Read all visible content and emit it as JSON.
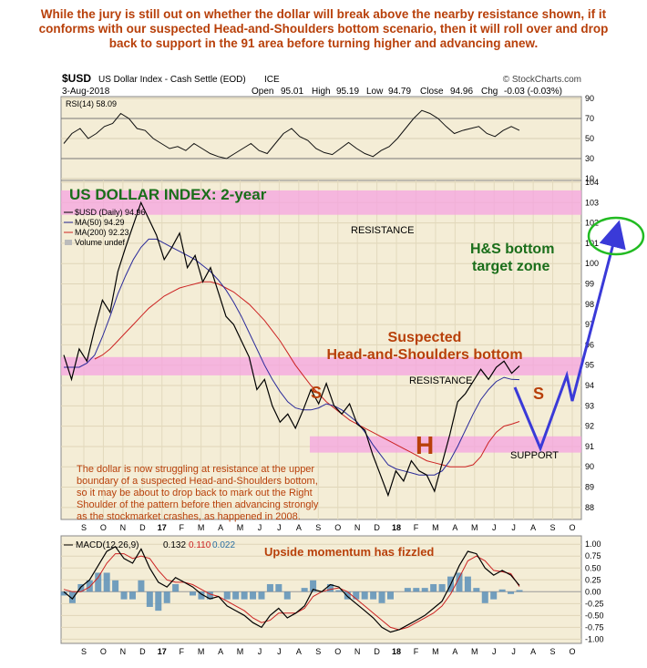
{
  "headline": "While the jury is still out on whether the dollar will break above the nearby resistance shown, if it conforms with our suspected Head-and-Shoulders bottom scenario, then it will roll over and drop back to support in the 91 area before turning higher and advancing anew.",
  "header": {
    "symbol": "$USD",
    "name": "US Dollar Index - Cash Settle (EOD)",
    "exchange": "ICE",
    "brand": "© StockCharts.com",
    "date": "3-Aug-2018",
    "open_label": "Open",
    "open": "95.01",
    "high_label": "High",
    "high": "95.19",
    "low_label": "Low",
    "low": "94.79",
    "close_label": "Close",
    "close": "94.96",
    "chg_label": "Chg",
    "chg": "-0.03 (-0.03%)"
  },
  "colors": {
    "panel_bg": "#f4edd6",
    "price": "#000000",
    "ma50": "#2a2a9a",
    "ma200": "#cc2222",
    "band": "#f5a3e0",
    "annotation_orange": "#b8400a",
    "annotation_green": "#1a6e1a",
    "annotation_blue": "#3a3ad8"
  },
  "annotations": {
    "title": "US DOLLAR INDEX: 2-year",
    "resistance_upper": "RESISTANCE",
    "resistance_lower": "RESISTANCE",
    "support": "SUPPORT",
    "target_line1": "H&S bottom",
    "target_line2": "target  zone",
    "pattern_line1": "Suspected",
    "pattern_line2": "Head-and-Shoulders bottom",
    "left_shoulder": "S",
    "head": "H",
    "right_shoulder": "S",
    "note": [
      "The dollar is now struggling at resistance at the upper",
      "boundary of a suspected Head-and-Shoulders bottom,",
      "so it may be about to drop back to mark out the Right",
      "Shoulder of the pattern before then advancing strongly",
      "as the stockmarket crashes, as happened in 2008."
    ],
    "macd_note": "Upside momentum has fizzled"
  },
  "chart_data": [
    {
      "type": "line",
      "panel": "RSI",
      "legend": "RSI(14) 58.09",
      "ylim": [
        10,
        90
      ],
      "ticks": [
        90,
        70,
        50,
        30,
        10
      ],
      "guide_lines": [
        70,
        30
      ],
      "values": [
        45,
        55,
        60,
        50,
        55,
        62,
        65,
        75,
        70,
        60,
        58,
        50,
        45,
        40,
        42,
        38,
        45,
        40,
        35,
        32,
        30,
        35,
        40,
        45,
        38,
        35,
        45,
        55,
        60,
        52,
        48,
        40,
        36,
        34,
        40,
        46,
        40,
        35,
        32,
        38,
        42,
        50,
        60,
        70,
        78,
        75,
        70,
        62,
        55,
        58,
        60,
        62,
        55,
        52,
        58,
        62,
        58.09
      ]
    },
    {
      "type": "line",
      "panel": "price",
      "legend": [
        "$USD (Daily) 94.96",
        "MA(50) 94.29",
        "MA(200) 92.23",
        "Volume undef"
      ],
      "ylim": [
        87.5,
        104
      ],
      "ticks": [
        104,
        103,
        102,
        101,
        100,
        99,
        98,
        97,
        96,
        95,
        94,
        93,
        92,
        91,
        90,
        89,
        88
      ],
      "x_labels": [
        "S",
        "O",
        "N",
        "D",
        "17",
        "F",
        "M",
        "A",
        "M",
        "J",
        "J",
        "A",
        "S",
        "O",
        "N",
        "D",
        "18",
        "F",
        "M",
        "A",
        "M",
        "J",
        "J",
        "A",
        "S",
        "O"
      ],
      "bands": {
        "upper_resistance": [
          102.4,
          103.6
        ],
        "lower_resistance": [
          94.5,
          95.4
        ],
        "support": [
          90.7,
          91.5
        ]
      },
      "series": [
        {
          "name": "$USD",
          "values": [
            95.5,
            94.3,
            95.8,
            95.2,
            96.8,
            98.2,
            97.6,
            99.6,
            100.8,
            101.9,
            103.0,
            102.2,
            101.4,
            100.2,
            100.8,
            101.5,
            99.8,
            100.4,
            99.1,
            99.8,
            98.6,
            97.4,
            97.0,
            96.2,
            95.4,
            93.8,
            94.3,
            93.0,
            92.2,
            92.6,
            91.9,
            92.8,
            93.8,
            93.1,
            94.1,
            93.0,
            92.6,
            93.1,
            92.1,
            91.8,
            90.6,
            89.6,
            88.6,
            89.8,
            89.3,
            90.3,
            89.8,
            89.6,
            88.8,
            90.2,
            91.6,
            93.2,
            93.6,
            94.2,
            94.8,
            94.3,
            94.9,
            95.2,
            94.6,
            94.96
          ]
        },
        {
          "name": "MA(50)",
          "values": [
            94.9,
            94.9,
            94.9,
            95.1,
            95.5,
            96.4,
            97.4,
            98.5,
            99.4,
            100.2,
            100.8,
            101.2,
            101.2,
            101.0,
            100.8,
            100.6,
            100.4,
            100.2,
            99.9,
            99.6,
            99.2,
            98.7,
            98.1,
            97.4,
            96.6,
            95.8,
            95.0,
            94.3,
            93.7,
            93.2,
            92.9,
            92.8,
            92.8,
            92.9,
            93.1,
            93.0,
            92.8,
            92.5,
            92.2,
            91.7,
            91.1,
            90.6,
            90.1,
            89.9,
            89.8,
            89.7,
            89.6,
            89.6,
            89.6,
            89.8,
            90.3,
            91.0,
            91.8,
            92.6,
            93.3,
            93.8,
            94.2,
            94.4,
            94.3,
            94.29
          ]
        },
        {
          "name": "MA(200)",
          "values": [
            null,
            null,
            null,
            null,
            95.3,
            95.5,
            95.8,
            96.2,
            96.6,
            97.0,
            97.4,
            97.8,
            98.1,
            98.4,
            98.6,
            98.8,
            98.9,
            99.0,
            99.1,
            99.1,
            99.0,
            98.8,
            98.6,
            98.3,
            98.0,
            97.6,
            97.2,
            96.7,
            96.2,
            95.6,
            95.0,
            94.5,
            94.0,
            93.6,
            93.2,
            92.9,
            92.6,
            92.3,
            92.1,
            91.9,
            91.7,
            91.5,
            91.3,
            91.1,
            90.9,
            90.7,
            90.5,
            90.3,
            90.2,
            90.1,
            90.0,
            90.0,
            90.0,
            90.1,
            90.5,
            91.2,
            91.7,
            92.0,
            92.1,
            92.23
          ]
        }
      ]
    },
    {
      "type": "line",
      "panel": "MACD",
      "legend": [
        "MACD(12,26,9)",
        "0.132",
        "0.110",
        "0.022"
      ],
      "ylim": [
        -1.05,
        1.1
      ],
      "ticks": [
        "1.00",
        "0.75",
        "0.50",
        "0.25",
        "0.00",
        "-0.25",
        "-0.50",
        "-0.75",
        "-1.00"
      ],
      "tick_values": [
        1.0,
        0.75,
        0.5,
        0.25,
        0.0,
        -0.25,
        -0.5,
        -0.75,
        -1.0
      ],
      "series": [
        {
          "name": "MACD",
          "values": [
            0.0,
            -0.15,
            0.1,
            0.25,
            0.55,
            0.85,
            0.95,
            0.7,
            0.6,
            0.9,
            0.5,
            0.2,
            0.1,
            0.3,
            0.2,
            0.1,
            -0.05,
            -0.15,
            -0.1,
            -0.3,
            -0.4,
            -0.5,
            -0.65,
            -0.75,
            -0.5,
            -0.35,
            -0.55,
            -0.45,
            -0.3,
            0.05,
            0.0,
            0.15,
            0.1,
            -0.1,
            -0.25,
            -0.4,
            -0.55,
            -0.75,
            -0.85,
            -0.8,
            -0.7,
            -0.6,
            -0.5,
            -0.35,
            -0.2,
            0.15,
            0.55,
            0.85,
            0.8,
            0.5,
            0.35,
            0.45,
            0.35,
            0.132
          ]
        },
        {
          "name": "Signal",
          "values": [
            0.05,
            0.0,
            0.0,
            0.1,
            0.3,
            0.6,
            0.8,
            0.8,
            0.7,
            0.75,
            0.7,
            0.45,
            0.25,
            0.2,
            0.2,
            0.15,
            0.05,
            -0.05,
            -0.1,
            -0.2,
            -0.3,
            -0.4,
            -0.55,
            -0.65,
            -0.6,
            -0.45,
            -0.45,
            -0.45,
            -0.35,
            -0.1,
            0.0,
            0.05,
            0.08,
            0.0,
            -0.15,
            -0.3,
            -0.45,
            -0.6,
            -0.75,
            -0.8,
            -0.75,
            -0.65,
            -0.55,
            -0.45,
            -0.3,
            -0.05,
            0.3,
            0.65,
            0.75,
            0.65,
            0.45,
            0.42,
            0.38,
            0.11
          ]
        }
      ]
    }
  ]
}
